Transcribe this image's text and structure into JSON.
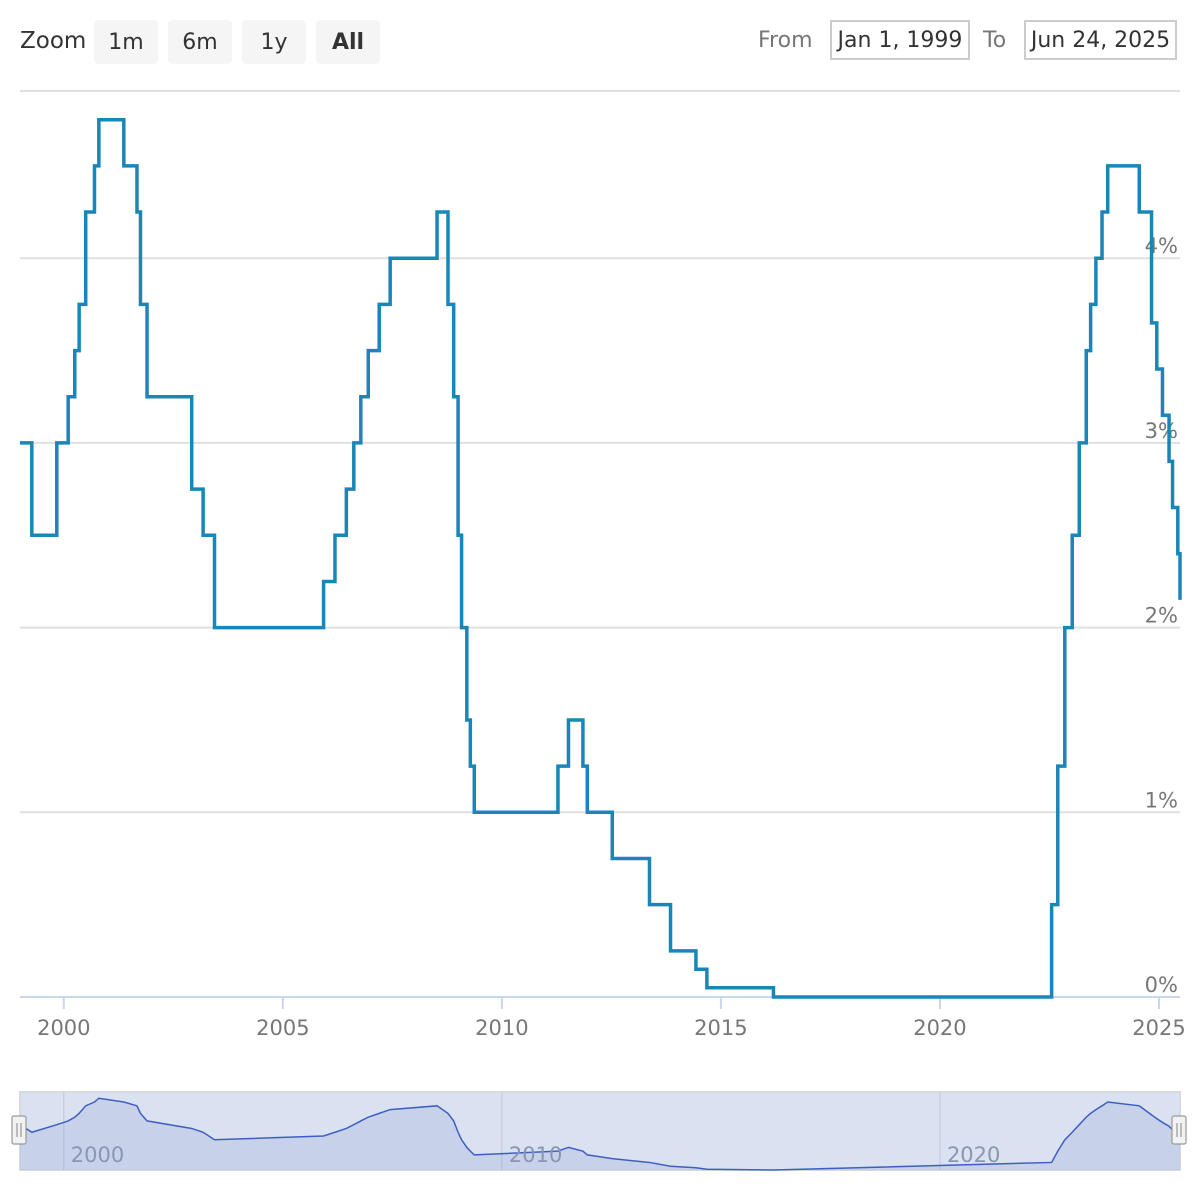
{
  "toolbar": {
    "zoom_label": "Zoom",
    "buttons": [
      {
        "label": "1m",
        "active": false
      },
      {
        "label": "6m",
        "active": false
      },
      {
        "label": "1y",
        "active": false
      },
      {
        "label": "All",
        "active": true
      }
    ],
    "from_label": "From",
    "from_value": "Jan 1, 1999",
    "to_label": "To",
    "to_value": "Jun 24, 2025"
  },
  "colors": {
    "line": "#1a86b8",
    "grid": "#e0e0e0",
    "navigator_fill": "#d3dcef",
    "navigator_line": "#3f5fbf"
  },
  "chart_data": {
    "type": "line",
    "step": true,
    "title": "",
    "xlabel": "",
    "ylabel": "",
    "x_range": [
      1999.0,
      2025.48
    ],
    "ylim": [
      0,
      4.9
    ],
    "y_ticks": [
      {
        "value": 0,
        "label": "0%"
      },
      {
        "value": 1,
        "label": "1%"
      },
      {
        "value": 2,
        "label": "2%"
      },
      {
        "value": 3,
        "label": "3%"
      },
      {
        "value": 4,
        "label": "4%"
      }
    ],
    "x_ticks": [
      {
        "value": 2000,
        "label": "2000"
      },
      {
        "value": 2005,
        "label": "2005"
      },
      {
        "value": 2010,
        "label": "2010"
      },
      {
        "value": 2015,
        "label": "2015"
      },
      {
        "value": 2020,
        "label": "2020"
      },
      {
        "value": 2025,
        "label": "2025"
      }
    ],
    "grid": true,
    "series": [
      {
        "points": [
          [
            1999.0,
            3.0
          ],
          [
            1999.27,
            2.5
          ],
          [
            1999.84,
            3.0
          ],
          [
            2000.1,
            3.25
          ],
          [
            2000.25,
            3.5
          ],
          [
            2000.35,
            3.75
          ],
          [
            2000.5,
            4.25
          ],
          [
            2000.7,
            4.5
          ],
          [
            2000.8,
            4.75
          ],
          [
            2001.37,
            4.5
          ],
          [
            2001.67,
            4.25
          ],
          [
            2001.75,
            3.75
          ],
          [
            2001.9,
            3.25
          ],
          [
            2002.92,
            2.75
          ],
          [
            2003.18,
            2.5
          ],
          [
            2003.44,
            2.0
          ],
          [
            2005.93,
            2.25
          ],
          [
            2006.19,
            2.5
          ],
          [
            2006.45,
            2.75
          ],
          [
            2006.62,
            3.0
          ],
          [
            2006.78,
            3.25
          ],
          [
            2006.95,
            3.5
          ],
          [
            2007.2,
            3.75
          ],
          [
            2007.45,
            4.0
          ],
          [
            2008.52,
            4.25
          ],
          [
            2008.77,
            3.75
          ],
          [
            2008.9,
            3.25
          ],
          [
            2009.0,
            2.5
          ],
          [
            2009.08,
            2.0
          ],
          [
            2009.2,
            1.5
          ],
          [
            2009.28,
            1.25
          ],
          [
            2009.37,
            1.0
          ],
          [
            2011.28,
            1.25
          ],
          [
            2011.52,
            1.5
          ],
          [
            2011.85,
            1.25
          ],
          [
            2011.95,
            1.0
          ],
          [
            2012.52,
            0.75
          ],
          [
            2013.37,
            0.5
          ],
          [
            2013.85,
            0.25
          ],
          [
            2014.43,
            0.15
          ],
          [
            2014.68,
            0.05
          ],
          [
            2016.2,
            0.0
          ],
          [
            2022.55,
            0.5
          ],
          [
            2022.69,
            1.25
          ],
          [
            2022.85,
            2.0
          ],
          [
            2023.02,
            2.5
          ],
          [
            2023.18,
            3.0
          ],
          [
            2023.34,
            3.5
          ],
          [
            2023.44,
            3.75
          ],
          [
            2023.56,
            4.0
          ],
          [
            2023.7,
            4.25
          ],
          [
            2023.83,
            4.5
          ],
          [
            2024.55,
            4.25
          ],
          [
            2024.83,
            3.65
          ],
          [
            2024.95,
            3.4
          ],
          [
            2025.08,
            3.15
          ],
          [
            2025.23,
            2.9
          ],
          [
            2025.31,
            2.65
          ],
          [
            2025.43,
            2.4
          ],
          [
            2025.48,
            2.15
          ]
        ]
      }
    ],
    "navigator": {
      "x_ticks": [
        {
          "value": 2000,
          "label": "2000"
        },
        {
          "value": 2010,
          "label": "2010"
        },
        {
          "value": 2020,
          "label": "2020"
        }
      ]
    }
  }
}
